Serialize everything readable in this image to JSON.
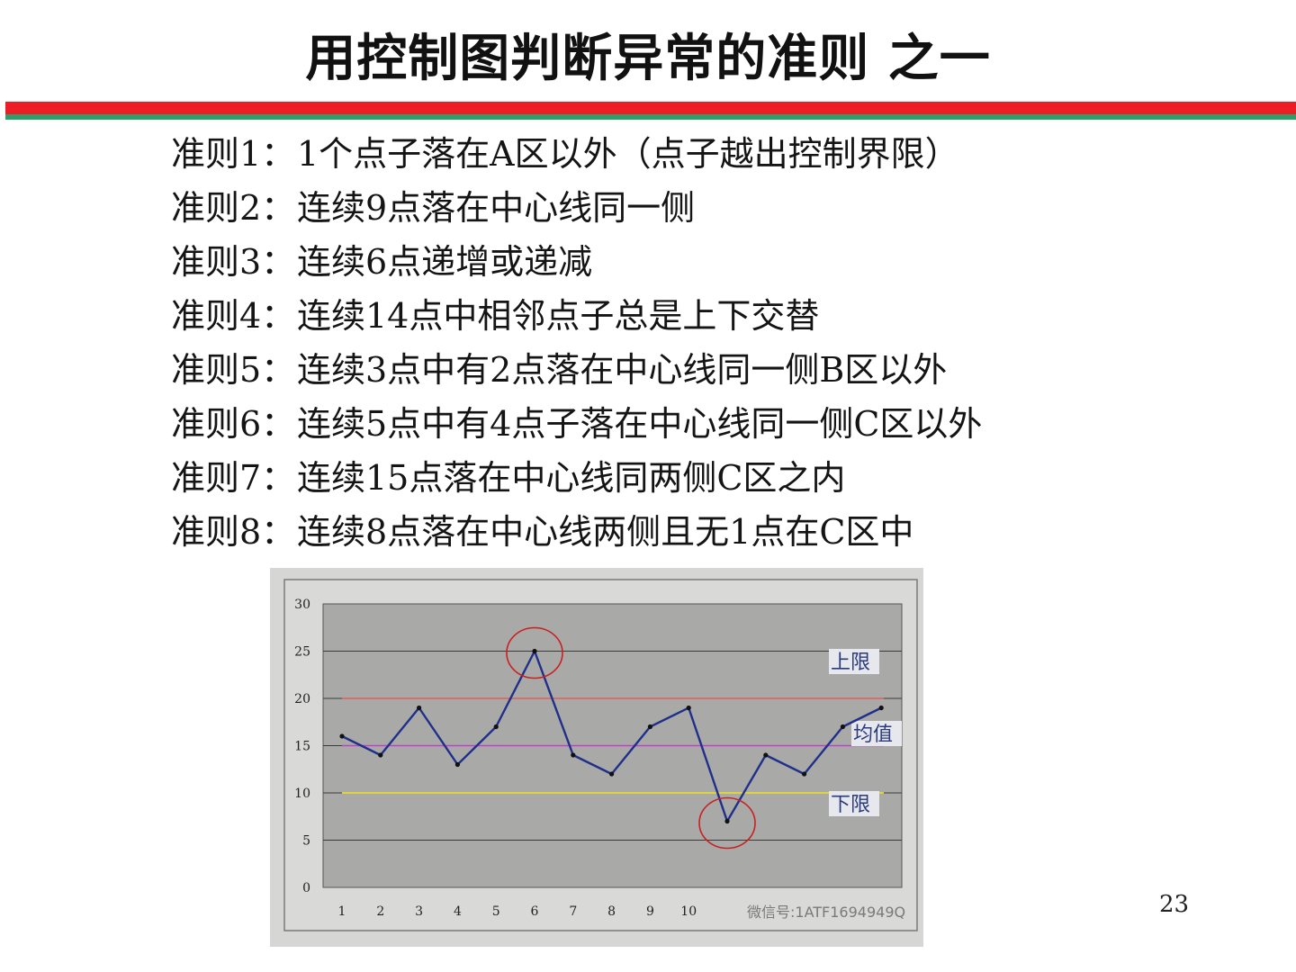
{
  "slide": {
    "title": "用控制图判断异常的准则 之一",
    "page_number": "23"
  },
  "rules": [
    {
      "label": "准则1：",
      "text": "1个点子落在A区以外（点子越出控制界限）"
    },
    {
      "label": "准则2：",
      "text": "连续9点落在中心线同一侧"
    },
    {
      "label": "准则3：",
      "text": "连续6点递增或递减"
    },
    {
      "label": "准则4：",
      "text": "连续14点中相邻点子总是上下交替"
    },
    {
      "label": "准则5：",
      "text": "连续3点中有2点落在中心线同一侧B区以外"
    },
    {
      "label": "准则6：",
      "text": "连续5点中有4点子落在中心线同一侧C区以外"
    },
    {
      "label": "准则7：",
      "text": "连续15点落在中心线同两侧C区之内"
    },
    {
      "label": "准则8：",
      "text": "连续8点落在中心线两侧且无1点在C区中"
    }
  ],
  "chart_data": {
    "type": "line",
    "title": "",
    "xlabel": "",
    "ylabel": "",
    "x": [
      1,
      2,
      3,
      4,
      5,
      6,
      7,
      8,
      9,
      10,
      11,
      12,
      13,
      14,
      15
    ],
    "x_tick_labels": [
      "1",
      "2",
      "3",
      "4",
      "5",
      "6",
      "7",
      "8",
      "9",
      "10"
    ],
    "yticks": [
      0,
      5,
      10,
      15,
      20,
      25,
      30
    ],
    "ylim": [
      0,
      30
    ],
    "grid": true,
    "series": [
      {
        "values": [
          16,
          14,
          19,
          13,
          17,
          25,
          14,
          12,
          17,
          19,
          7,
          14,
          12,
          17,
          19
        ],
        "color": "#1f2f8a"
      }
    ],
    "reference_lines": [
      {
        "name": "上限",
        "value": 20,
        "color": "#e0605a"
      },
      {
        "name": "均值",
        "value": 15,
        "color": "#c040c8"
      },
      {
        "name": "下限",
        "value": 10,
        "color": "#f2e21a"
      }
    ],
    "highlighted_points": [
      6,
      11
    ],
    "highlight_color": "#c82020",
    "plot_background": "#a9aaa8",
    "watermark": "微信号:1ATF1694949Q"
  }
}
